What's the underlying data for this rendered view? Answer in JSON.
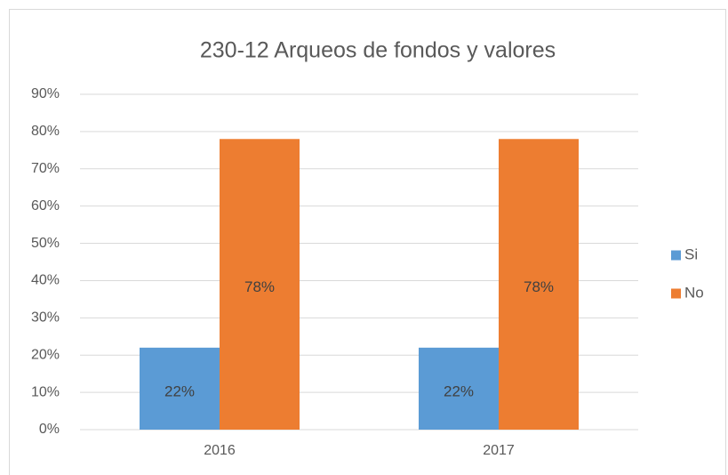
{
  "chart_data": {
    "type": "bar",
    "title": "230-12 Arqueos de fondos y valores",
    "categories": [
      "2016",
      "2017"
    ],
    "series": [
      {
        "name": "Si",
        "color": "#5b9bd5",
        "values": [
          22,
          22
        ],
        "value_labels": [
          "22%",
          "22%"
        ]
      },
      {
        "name": "No",
        "color": "#ed7d31",
        "values": [
          78,
          78
        ],
        "value_labels": [
          "78%",
          "78%"
        ]
      }
    ],
    "ylim": [
      0,
      90
    ],
    "yticks": [
      {
        "value": 0,
        "label": "0%"
      },
      {
        "value": 10,
        "label": "10%"
      },
      {
        "value": 20,
        "label": "20%"
      },
      {
        "value": 30,
        "label": "30%"
      },
      {
        "value": 40,
        "label": "40%"
      },
      {
        "value": 50,
        "label": "50%"
      },
      {
        "value": 60,
        "label": "60%"
      },
      {
        "value": 70,
        "label": "70%"
      },
      {
        "value": 80,
        "label": "80%"
      },
      {
        "value": 90,
        "label": "90%"
      }
    ],
    "grid": true,
    "legend": "right"
  }
}
